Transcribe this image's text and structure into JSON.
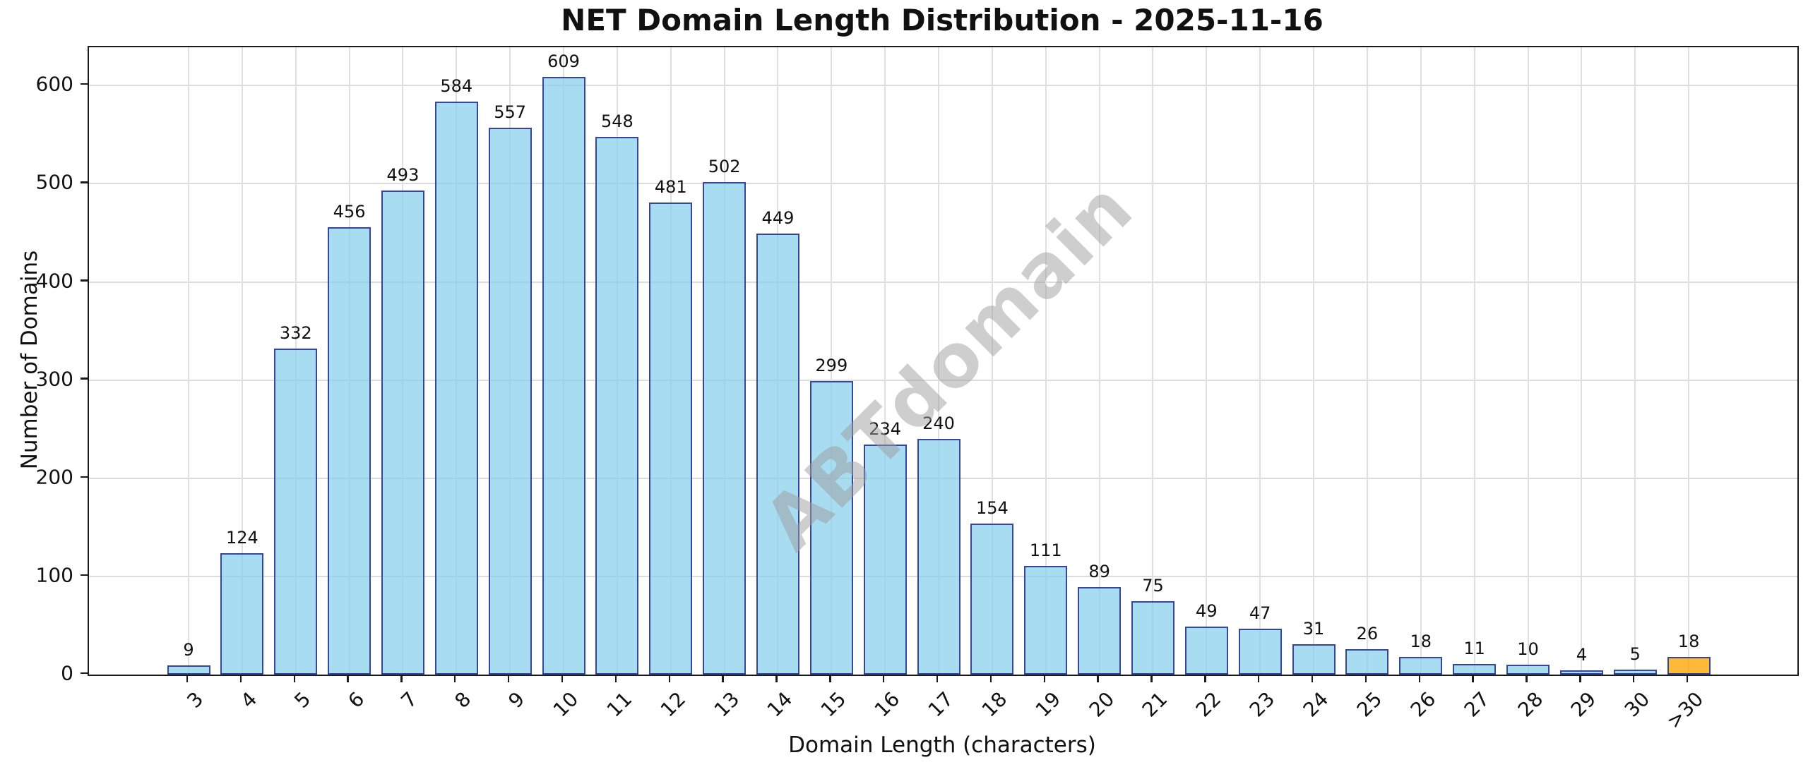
{
  "title": "NET Domain Length Distribution - 2025-11-16",
  "watermark": "ABTdomain",
  "chart_data": {
    "type": "bar",
    "title": "NET Domain Length Distribution - 2025-11-16",
    "xlabel": "Domain Length (characters)",
    "ylabel": "Number of Domains",
    "categories": [
      "3",
      "4",
      "5",
      "6",
      "7",
      "8",
      "9",
      "10",
      "11",
      "12",
      "13",
      "14",
      "15",
      "16",
      "17",
      "18",
      "19",
      "20",
      "21",
      "22",
      "23",
      "24",
      "25",
      "26",
      "27",
      "28",
      "29",
      "30",
      ">30"
    ],
    "values": [
      9,
      124,
      332,
      456,
      493,
      584,
      557,
      609,
      548,
      481,
      502,
      449,
      299,
      234,
      240,
      154,
      111,
      89,
      75,
      49,
      47,
      31,
      26,
      18,
      11,
      10,
      4,
      5,
      18
    ],
    "yticks": [
      0,
      100,
      200,
      300,
      400,
      500,
      600
    ],
    "ylim": [
      0,
      639
    ],
    "grid": true,
    "legend": "none",
    "bar_fill_color": "rgba(135,206,235,0.72)",
    "bar_edge_color": "#35469b",
    "highlight_index": 28,
    "highlight_fill_color": "rgba(255,165,0,0.78)",
    "highlight_edge_color": "#35469b",
    "grid_color": "#dcdcdc",
    "watermark_text": "ABTdomain"
  }
}
